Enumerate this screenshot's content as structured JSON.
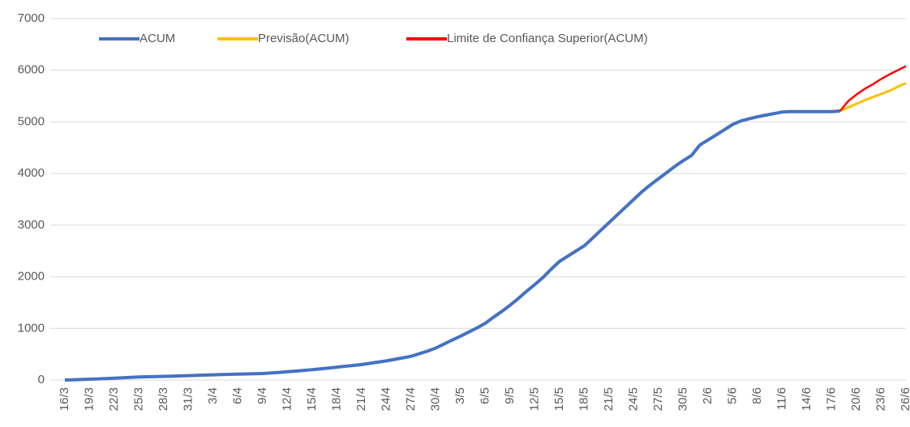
{
  "chart_data": {
    "type": "line",
    "categories": [
      "16/3",
      null,
      null,
      "19/3",
      null,
      null,
      "22/3",
      null,
      null,
      "25/3",
      null,
      null,
      "28/3",
      null,
      null,
      "31/3",
      null,
      null,
      "3/4",
      null,
      null,
      "6/4",
      null,
      null,
      "9/4",
      null,
      null,
      "12/4",
      null,
      null,
      "15/4",
      null,
      null,
      "18/4",
      null,
      null,
      "21/4",
      null,
      null,
      "24/4",
      null,
      null,
      "27/4",
      null,
      null,
      "30/4",
      null,
      null,
      "3/5",
      null,
      null,
      "6/5",
      null,
      null,
      "9/5",
      null,
      null,
      "12/5",
      null,
      null,
      "15/5",
      null,
      null,
      "18/5",
      null,
      null,
      "21/5",
      null,
      null,
      "24/5",
      null,
      null,
      "27/5",
      null,
      null,
      "30/5",
      null,
      null,
      "2/6",
      null,
      null,
      "5/6",
      null,
      null,
      "8/6",
      null,
      null,
      "11/6",
      null,
      null,
      "14/6",
      null,
      null,
      "17/6",
      null,
      null,
      "20/6",
      null,
      null,
      "23/6",
      null,
      null,
      "26/6"
    ],
    "series": [
      {
        "name": "ACUM",
        "color": "#4472c4",
        "width": 4,
        "values": [
          0,
          5,
          10,
          15,
          22,
          28,
          35,
          43,
          52,
          60,
          63,
          67,
          70,
          75,
          80,
          85,
          90,
          95,
          100,
          105,
          110,
          115,
          118,
          122,
          125,
          137,
          148,
          160,
          173,
          187,
          200,
          217,
          233,
          250,
          267,
          283,
          300,
          323,
          347,
          370,
          400,
          430,
          460,
          510,
          560,
          620,
          700,
          775,
          850,
          930,
          1010,
          1100,
          1220,
          1330,
          1450,
          1580,
          1720,
          1850,
          1990,
          2150,
          2300,
          2400,
          2500,
          2600,
          2750,
          2900,
          3050,
          3200,
          3350,
          3500,
          3650,
          3780,
          3900,
          4020,
          4140,
          4250,
          4350,
          4550,
          4650,
          4750,
          4850,
          4950,
          5020,
          5060,
          5100,
          5130,
          5160,
          5190,
          5200,
          5200,
          5200,
          5200,
          5200,
          5200,
          5210,
          null,
          null,
          null,
          null,
          null,
          null,
          null,
          null
        ]
      },
      {
        "name": "Previsão(ACUM)",
        "color": "#ffc000",
        "width": 3,
        "values": [
          null,
          null,
          null,
          null,
          null,
          null,
          null,
          null,
          null,
          null,
          null,
          null,
          null,
          null,
          null,
          null,
          null,
          null,
          null,
          null,
          null,
          null,
          null,
          null,
          null,
          null,
          null,
          null,
          null,
          null,
          null,
          null,
          null,
          null,
          null,
          null,
          null,
          null,
          null,
          null,
          null,
          null,
          null,
          null,
          null,
          null,
          null,
          null,
          null,
          null,
          null,
          null,
          null,
          null,
          null,
          null,
          null,
          null,
          null,
          null,
          null,
          null,
          null,
          null,
          null,
          null,
          null,
          null,
          null,
          null,
          null,
          null,
          null,
          null,
          null,
          null,
          null,
          null,
          null,
          null,
          null,
          null,
          null,
          null,
          null,
          null,
          null,
          null,
          null,
          null,
          null,
          null,
          null,
          null,
          5210,
          5280,
          5350,
          5420,
          5480,
          5540,
          5600,
          5680,
          5750
        ]
      },
      {
        "name": "Limite de Confiança Superior(ACUM)",
        "color": "#ff0000",
        "width": 2.5,
        "values": [
          null,
          null,
          null,
          null,
          null,
          null,
          null,
          null,
          null,
          null,
          null,
          null,
          null,
          null,
          null,
          null,
          null,
          null,
          null,
          null,
          null,
          null,
          null,
          null,
          null,
          null,
          null,
          null,
          null,
          null,
          null,
          null,
          null,
          null,
          null,
          null,
          null,
          null,
          null,
          null,
          null,
          null,
          null,
          null,
          null,
          null,
          null,
          null,
          null,
          null,
          null,
          null,
          null,
          null,
          null,
          null,
          null,
          null,
          null,
          null,
          null,
          null,
          null,
          null,
          null,
          null,
          null,
          null,
          null,
          null,
          null,
          null,
          null,
          null,
          null,
          null,
          null,
          null,
          null,
          null,
          null,
          null,
          null,
          null,
          null,
          null,
          null,
          null,
          null,
          null,
          null,
          null,
          null,
          null,
          5210,
          5400,
          5530,
          5640,
          5730,
          5830,
          5920,
          6000,
          6080
        ]
      }
    ],
    "ylim": [
      0,
      7000
    ],
    "yticks": [
      0,
      1000,
      2000,
      3000,
      4000,
      5000,
      6000,
      7000
    ],
    "grid": true,
    "legend": "top"
  }
}
